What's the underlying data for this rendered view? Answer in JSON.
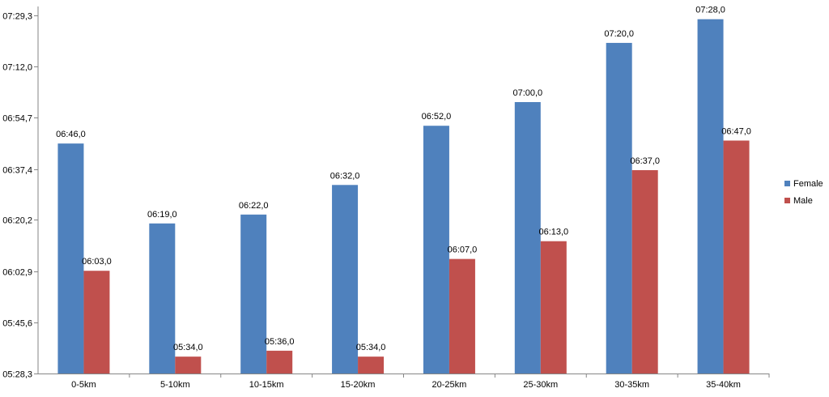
{
  "chart_data": {
    "type": "bar",
    "categories": [
      "0-5km",
      "5-10km",
      "10-15km",
      "15-20km",
      "20-25km",
      "25-30km",
      "30-35km",
      "35-40km"
    ],
    "series": [
      {
        "name": "Female",
        "color": "#4F81BD",
        "values": [
          406,
          379,
          382,
          392,
          412,
          420,
          440,
          448
        ],
        "labels": [
          "06:46,0",
          "06:19,0",
          "06:22,0",
          "06:32,0",
          "06:52,0",
          "07:00,0",
          "07:20,0",
          "07:28,0"
        ]
      },
      {
        "name": "Male",
        "color": "#C0504D",
        "values": [
          363,
          334,
          336,
          334,
          367,
          373,
          397,
          407
        ],
        "labels": [
          "06:03,0",
          "05:34,0",
          "05:36,0",
          "05:34,0",
          "06:07,0",
          "06:13,0",
          "06:37,0",
          "06:47,0"
        ]
      }
    ],
    "yticks": [
      328.3,
      345.6,
      362.9,
      380.2,
      397.4,
      414.7,
      432.0,
      449.3
    ],
    "ytick_labels": [
      "05:28,3",
      "05:45,6",
      "06:02,9",
      "06:20,2",
      "06:37,4",
      "06:54,7",
      "07:12,0",
      "07:29,3"
    ],
    "ylim": [
      328.3,
      452.3
    ],
    "ylabel_unit": "seconds (mm:ss)",
    "title": "",
    "xlabel": "",
    "ylabel": "",
    "grid": false,
    "legend_position": "right"
  }
}
